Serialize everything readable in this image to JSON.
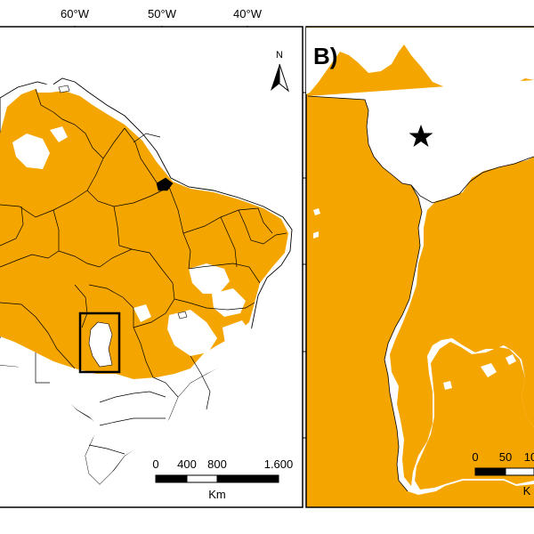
{
  "colors": {
    "range": "#F5A500",
    "background": "#ffffff",
    "border": "#000000"
  },
  "map_a": {
    "longitude_ticks": [
      "60°W",
      "50°W",
      "40°W"
    ],
    "north_label": "N",
    "scale_bar": {
      "tick_labels": [
        "0",
        "400",
        "800",
        "1.600"
      ],
      "unit": "Km"
    }
  },
  "map_b": {
    "panel_label": "B)",
    "marker_icon": "star-icon",
    "scale_bar": {
      "tick_labels": [
        "0",
        "50",
        "10"
      ],
      "unit": "K"
    }
  }
}
